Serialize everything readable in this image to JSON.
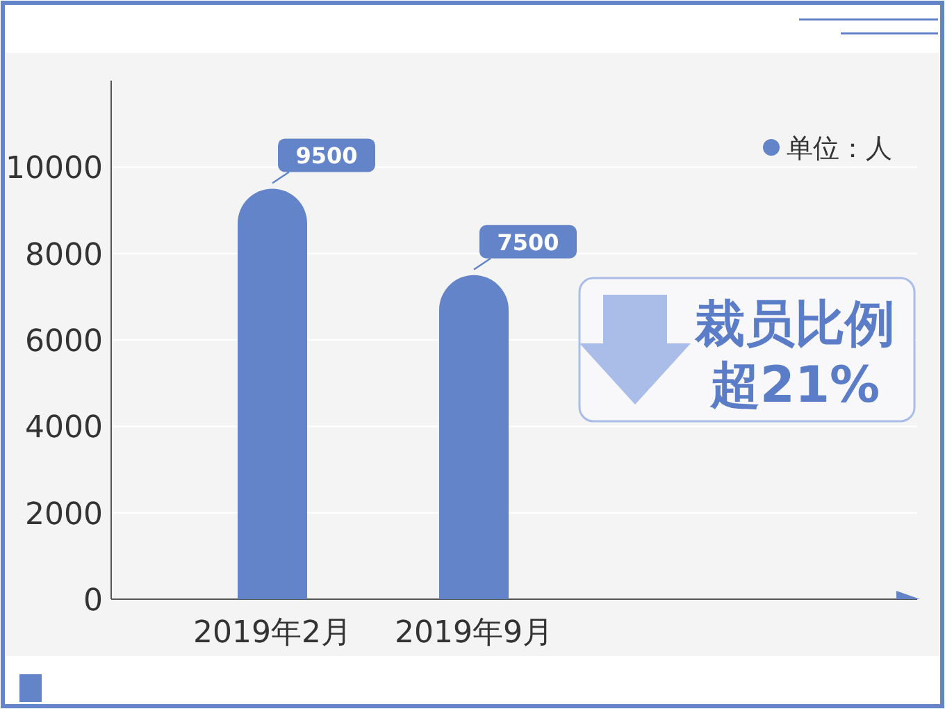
{
  "chart_data": {
    "type": "bar",
    "categories": [
      "2019年2月",
      "2019年9月"
    ],
    "series": [
      {
        "name": "单位：人",
        "color": "#6384c8",
        "values": [
          9500,
          7500
        ]
      }
    ],
    "ylim": [
      0,
      12000
    ],
    "yticks": [
      0,
      2000,
      4000,
      6000,
      8000,
      10000
    ],
    "grid": "y",
    "legend": "top right",
    "data_labels": true,
    "annotations": [
      "裁员比例",
      "超21%"
    ]
  }
}
